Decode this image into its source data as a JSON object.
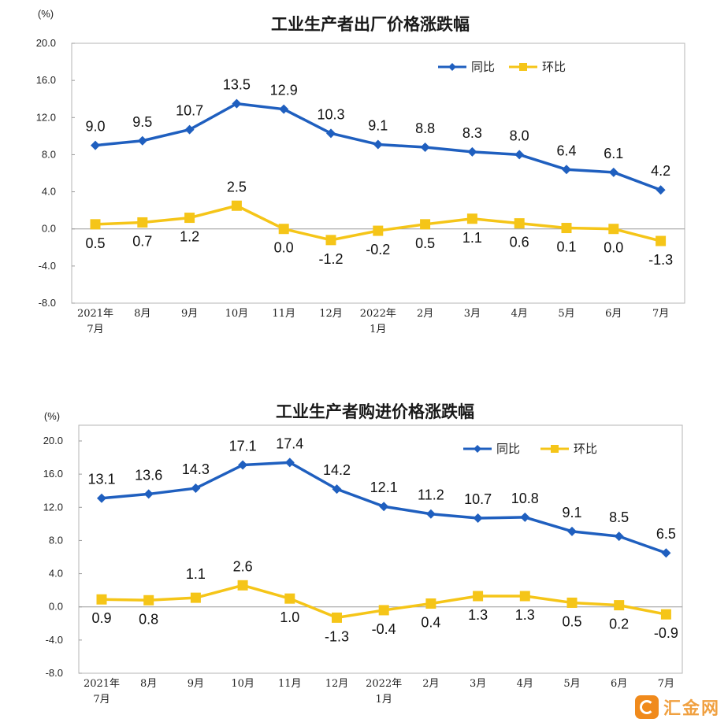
{
  "watermark": {
    "text": "汇金网",
    "icon": "huijin-logo-icon"
  },
  "colors": {
    "yoy": "#1f5fbf",
    "mom": "#f5c518",
    "axis": "#999999",
    "border": "#b5b5b5"
  },
  "chart_data": [
    {
      "type": "line",
      "title": "工业生产者出厂价格涨跌幅",
      "unit_label": "(%)",
      "ylim": [
        -8.0,
        20.0
      ],
      "yticks": [
        "20.0",
        "16.0",
        "12.0",
        "8.0",
        "4.0",
        "0.0",
        "-4.0",
        "-8.0"
      ],
      "categories": [
        [
          "2021年",
          "7月"
        ],
        [
          "8月"
        ],
        [
          "9月"
        ],
        [
          "10月"
        ],
        [
          "11月"
        ],
        [
          "12月"
        ],
        [
          "2022年",
          "1月"
        ],
        [
          "2月"
        ],
        [
          "3月"
        ],
        [
          "4月"
        ],
        [
          "5月"
        ],
        [
          "6月"
        ],
        [
          "7月"
        ]
      ],
      "legend_position": "top-right",
      "series": [
        {
          "name": "同比",
          "values": [
            9.0,
            9.5,
            10.7,
            13.5,
            12.9,
            10.3,
            9.1,
            8.8,
            8.3,
            8.0,
            6.4,
            6.1,
            4.2
          ],
          "labels": [
            "9.0",
            "9.5",
            "10.7",
            "13.5",
            "12.9",
            "10.3",
            "9.1",
            "8.8",
            "8.3",
            "8.0",
            "6.4",
            "6.1",
            "4.2"
          ]
        },
        {
          "name": "环比",
          "values": [
            0.5,
            0.7,
            1.2,
            2.5,
            0.0,
            -1.2,
            -0.2,
            0.5,
            1.1,
            0.6,
            0.1,
            0.0,
            -1.3
          ],
          "labels": [
            "0.5",
            "0.7",
            "1.2",
            "2.5",
            "0.0",
            "-1.2",
            "-0.2",
            "0.5",
            "1.1",
            "0.6",
            "0.1",
            "0.0",
            "-1.3"
          ]
        }
      ]
    },
    {
      "type": "line",
      "title": "工业生产者购进价格涨跌幅",
      "unit_label": "(%)",
      "ylim": [
        -8.0,
        20.0
      ],
      "yticks": [
        "20.0",
        "16.0",
        "12.0",
        "8.0",
        "4.0",
        "0.0",
        "-4.0",
        "-8.0"
      ],
      "categories": [
        [
          "2021年",
          "7月"
        ],
        [
          "8月"
        ],
        [
          "9月"
        ],
        [
          "10月"
        ],
        [
          "11月"
        ],
        [
          "12月"
        ],
        [
          "2022年",
          "1月"
        ],
        [
          "2月"
        ],
        [
          "3月"
        ],
        [
          "4月"
        ],
        [
          "5月"
        ],
        [
          "6月"
        ],
        [
          "7月"
        ]
      ],
      "legend_position": "top-right",
      "series": [
        {
          "name": "同比",
          "values": [
            13.1,
            13.6,
            14.3,
            17.1,
            17.4,
            14.2,
            12.1,
            11.2,
            10.7,
            10.8,
            9.1,
            8.5,
            6.5
          ],
          "labels": [
            "13.1",
            "13.6",
            "14.3",
            "17.1",
            "17.4",
            "14.2",
            "12.1",
            "11.2",
            "10.7",
            "10.8",
            "9.1",
            "8.5",
            "6.5"
          ]
        },
        {
          "name": "环比",
          "values": [
            0.9,
            0.8,
            1.1,
            2.6,
            1.0,
            -1.3,
            -0.4,
            0.4,
            1.3,
            1.3,
            0.5,
            0.2,
            -0.9
          ],
          "labels": [
            "0.9",
            "0.8",
            "1.1",
            "2.6",
            "1.0",
            "-1.3",
            "-0.4",
            "0.4",
            "1.3",
            "1.3",
            "0.5",
            "0.2",
            "-0.9"
          ]
        }
      ]
    }
  ]
}
